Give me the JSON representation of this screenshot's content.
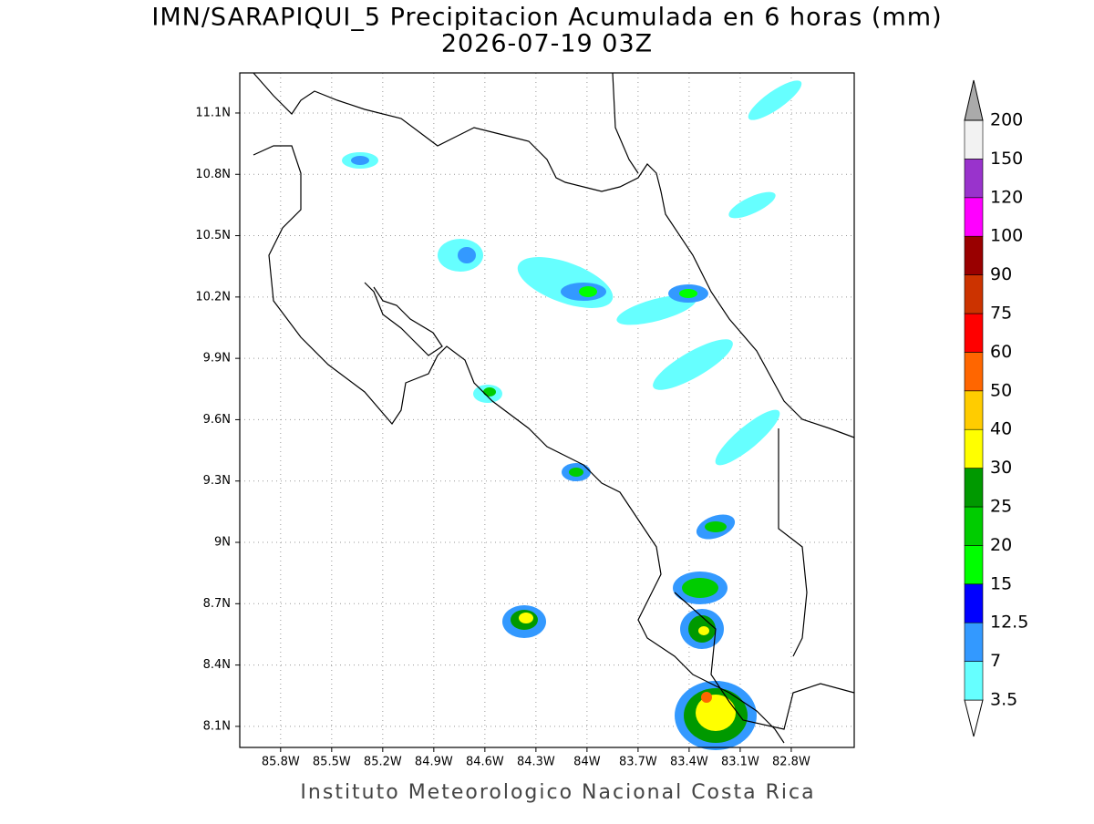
{
  "map": {
    "title": "IMN/SARAPIQUI_5 Precipitacion Acumulada en 6 horas (mm)",
    "subtitle": "2026-07-19 03Z",
    "footer": "Instituto Meteorologico Nacional Costa Rica",
    "xlim": [
      -86.04,
      -82.43
    ],
    "ylim": [
      7.997,
      11.296
    ],
    "xticks": [
      {
        "value": -85.8,
        "label": "85.8W"
      },
      {
        "value": -85.5,
        "label": "85.5W"
      },
      {
        "value": -85.2,
        "label": "85.2W"
      },
      {
        "value": -84.9,
        "label": "84.9W"
      },
      {
        "value": -84.6,
        "label": "84.6W"
      },
      {
        "value": -84.3,
        "label": "84.3W"
      },
      {
        "value": -84.0,
        "label": "84W"
      },
      {
        "value": -83.7,
        "label": "83.7W"
      },
      {
        "value": -83.4,
        "label": "83.4W"
      },
      {
        "value": -83.1,
        "label": "83.1W"
      },
      {
        "value": -82.8,
        "label": "82.8W"
      }
    ],
    "yticks": [
      {
        "value": 11.1,
        "label": "11.1N"
      },
      {
        "value": 10.8,
        "label": "10.8N"
      },
      {
        "value": 10.5,
        "label": "10.5N"
      },
      {
        "value": 10.2,
        "label": "10.2N"
      },
      {
        "value": 9.9,
        "label": "9.9N"
      },
      {
        "value": 9.6,
        "label": "9.6N"
      },
      {
        "value": 9.3,
        "label": "9.3N"
      },
      {
        "value": 9.0,
        "label": "9N"
      },
      {
        "value": 8.7,
        "label": "8.7N"
      },
      {
        "value": 8.4,
        "label": "8.4N"
      },
      {
        "value": 8.1,
        "label": "8.1N"
      }
    ],
    "grid": true,
    "colorbar": {
      "levels": [
        3.5,
        7,
        12.5,
        15,
        20,
        25,
        30,
        40,
        50,
        60,
        75,
        90,
        100,
        120,
        150,
        200
      ],
      "colors": [
        "#ffffff",
        "#66ffff",
        "#3399ff",
        "#0000ff",
        "#00ff00",
        "#00cc00",
        "#009900",
        "#ffff00",
        "#ffcc00",
        "#ff6600",
        "#ff0000",
        "#cc3300",
        "#990000",
        "#ff00ff",
        "#9933cc",
        "#f2f2f2",
        "#aaaaaa"
      ]
    }
  }
}
